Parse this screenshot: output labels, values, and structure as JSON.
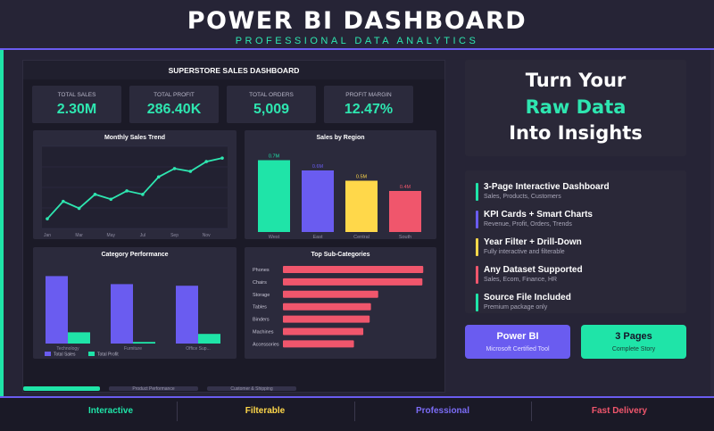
{
  "header": {
    "title": "POWER BI DASHBOARD",
    "subtitle": "PROFESSIONAL DATA ANALYTICS"
  },
  "dashboard": {
    "title": "SUPERSTORE SALES DASHBOARD",
    "kpis": [
      {
        "label": "TOTAL SALES",
        "value": "2.30M"
      },
      {
        "label": "TOTAL PROFIT",
        "value": "286.40K"
      },
      {
        "label": "TOTAL ORDERS",
        "value": "5,009"
      },
      {
        "label": "PROFIT MARGIN",
        "value": "12.47%"
      }
    ],
    "tabs": [
      {
        "label": "",
        "active": true
      },
      {
        "label": "Product Performance",
        "active": false
      },
      {
        "label": "Customer & Shipping",
        "active": false
      }
    ]
  },
  "chart_data": [
    {
      "type": "line",
      "title": "Monthly Sales Trend",
      "x_ticks": [
        "Jan",
        "Mar",
        "May",
        "Jul",
        "Sep",
        "Nov"
      ],
      "values": [
        10,
        35,
        25,
        45,
        38,
        50,
        45,
        70,
        82,
        78,
        92,
        97
      ],
      "ylim": [
        0,
        110
      ],
      "color": "#2ee6b0",
      "grid": true
    },
    {
      "type": "bar",
      "title": "Sales by Region",
      "categories": [
        "West",
        "East",
        "Central",
        "South"
      ],
      "values": [
        0.7,
        0.6,
        0.5,
        0.4
      ],
      "data_labels": [
        "0.7M",
        "0.6M",
        "0.5M",
        "0.4M"
      ],
      "colors": [
        "#1fe4a8",
        "#6a5cf0",
        "#ffd84a",
        "#f0566c"
      ],
      "ylim": [
        0,
        0.8
      ]
    },
    {
      "type": "bar",
      "title": "Category Performance",
      "categories": [
        "Technology",
        "Furniture",
        "Office Sup..."
      ],
      "series": [
        {
          "name": "Total Sales",
          "values": [
            0.84,
            0.74,
            0.72
          ],
          "color": "#6a5cf0"
        },
        {
          "name": "Total Profit",
          "values": [
            0.14,
            0.02,
            0.12
          ],
          "color": "#1fe4a8"
        }
      ],
      "ylim": [
        0,
        1.0
      ],
      "legend": "bottom-left"
    },
    {
      "type": "bar",
      "orientation": "horizontal",
      "title": "Top Sub-Categories",
      "categories": [
        "Phones",
        "Chairs",
        "Storage",
        "Tables",
        "Binders",
        "Machines",
        "Accessories"
      ],
      "values": [
        330,
        328,
        224,
        207,
        204,
        189,
        167
      ],
      "color": "#f0566c",
      "xlim": [
        0,
        340
      ]
    }
  ],
  "hero": {
    "line1": "Turn Your",
    "line2": "Raw Data",
    "line3": "Into Insights"
  },
  "features": [
    {
      "title": "3-Page Interactive Dashboard",
      "sub": "Sales, Products, Customers",
      "color": "#1fe4a8"
    },
    {
      "title": "KPI Cards + Smart Charts",
      "sub": "Revenue, Profit, Orders, Trends",
      "color": "#6a5cf0"
    },
    {
      "title": "Year Filter + Drill-Down",
      "sub": "Fully interactive and filterable",
      "color": "#ffd84a"
    },
    {
      "title": "Any Dataset Supported",
      "sub": "Sales, Ecom, Finance, HR",
      "color": "#f0566c"
    },
    {
      "title": "Source File Included",
      "sub": "Premium package only",
      "color": "#1fe4a8"
    }
  ],
  "badges": [
    {
      "title": "Power BI",
      "sub": "Microsoft Certified Tool",
      "bg": "#6a5cf0",
      "fg": "#ffffff",
      "sub_fg": "#e4e1ff"
    },
    {
      "title": "3 Pages",
      "sub": "Complete Story",
      "bg": "#1fe4a8",
      "fg": "#16152a",
      "sub_fg": "#1d3a34"
    }
  ],
  "footer": [
    {
      "label": "Interactive",
      "color": "#1fe4a8"
    },
    {
      "label": "Filterable",
      "color": "#ffd84a"
    },
    {
      "label": "Professional",
      "color": "#7b6cf6"
    },
    {
      "label": "Fast Delivery",
      "color": "#f0566c"
    }
  ]
}
